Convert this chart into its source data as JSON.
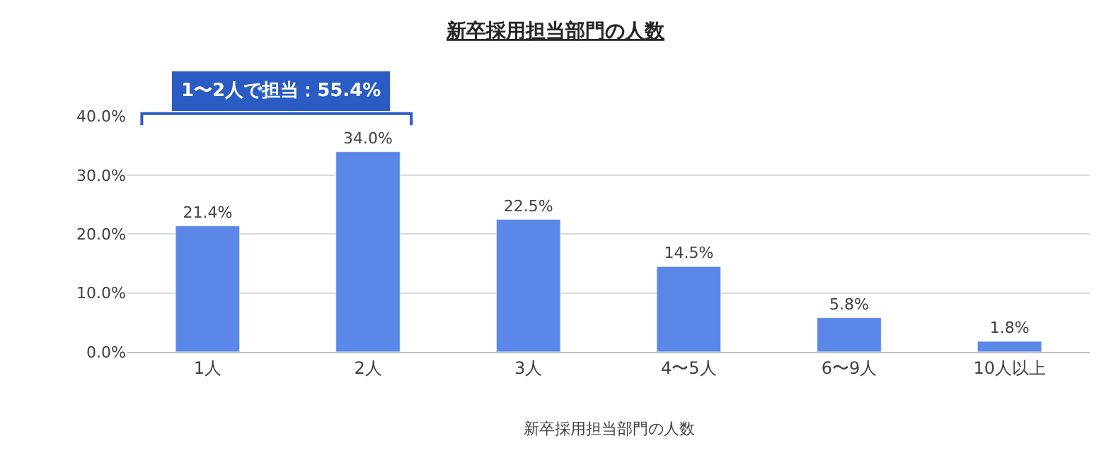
{
  "chart_data": {
    "type": "bar",
    "title": "新卒採用担当部門の人数",
    "categories": [
      "1人",
      "2人",
      "3人",
      "4〜5人",
      "6〜9人",
      "10人以上"
    ],
    "values": [
      21.4,
      34.0,
      22.5,
      14.5,
      5.8,
      1.8
    ],
    "value_labels": [
      "21.4%",
      "34.0%",
      "22.5%",
      "14.5%",
      "5.8%",
      "1.8%"
    ],
    "color": "#5b87e8",
    "ylim": [
      0,
      40
    ],
    "yticks": [
      {
        "value": 0,
        "label": "0.0%"
      },
      {
        "value": 10,
        "label": "10.0%"
      },
      {
        "value": 20,
        "label": "20.0%"
      },
      {
        "value": 30,
        "label": "30.0%"
      },
      {
        "value": 40,
        "label": "40.0%"
      }
    ],
    "grid": "y",
    "annotations": [
      "1〜2人で担当：55.4%",
      "新卒採用担当部門の人数"
    ]
  }
}
